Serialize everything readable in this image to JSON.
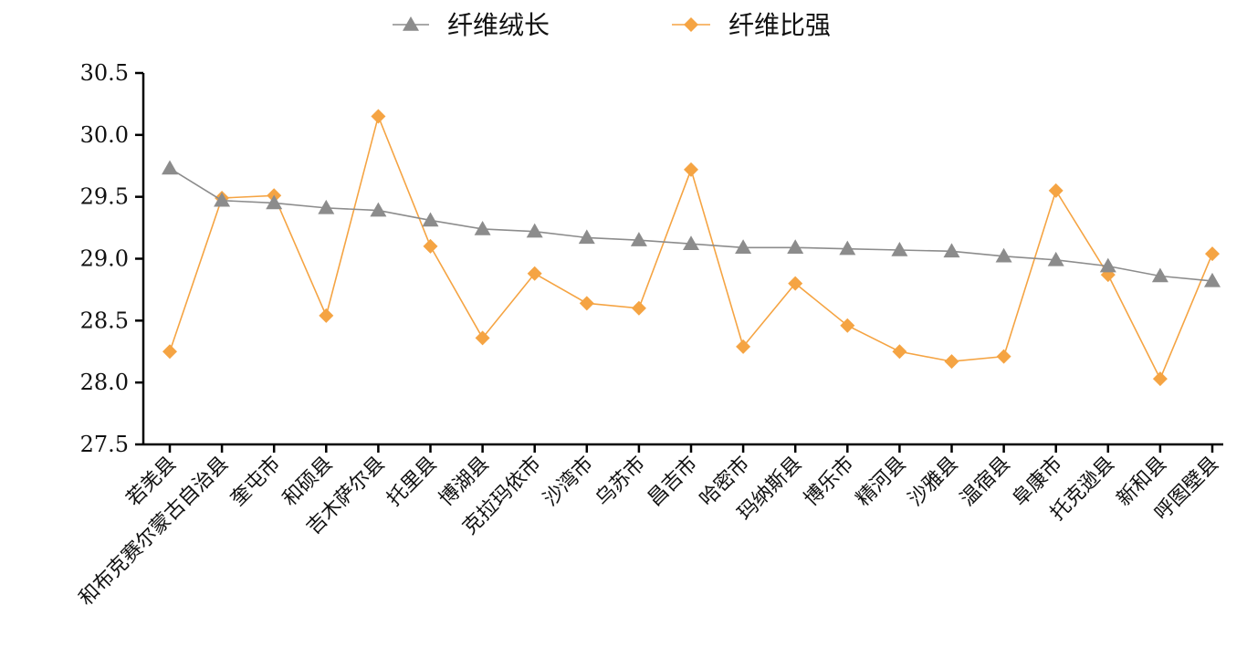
{
  "chart_data": {
    "type": "line",
    "title": "",
    "xlabel": "",
    "ylabel": "",
    "categories": [
      "若羌县",
      "和布克赛尔蒙古自治县",
      "奎屯市",
      "和硕县",
      "吉木萨尔县",
      "托里县",
      "博湖县",
      "克拉玛依市",
      "沙湾市",
      "乌苏市",
      "昌吉市",
      "哈密市",
      "玛纳斯县",
      "博乐市",
      "精河县",
      "沙雅县",
      "温宿县",
      "阜康市",
      "托克逊县",
      "新和县",
      "呼图壁县"
    ],
    "ylim": [
      27.5,
      30.5
    ],
    "yticks": [
      "27.5",
      "28.0",
      "28.5",
      "29.0",
      "29.5",
      "30.0",
      "30.5"
    ],
    "grid": false,
    "legend_position": "top-center",
    "series": [
      {
        "name": "纤维绒长",
        "marker": "triangle",
        "color": "#8c8c8c",
        "values": [
          29.73,
          29.47,
          29.45,
          29.41,
          29.39,
          29.31,
          29.24,
          29.22,
          29.17,
          29.15,
          29.12,
          29.09,
          29.09,
          29.08,
          29.07,
          29.06,
          29.02,
          28.99,
          28.94,
          28.86,
          28.82
        ]
      },
      {
        "name": "纤维比强",
        "marker": "diamond",
        "color": "#f5a443",
        "values": [
          28.25,
          29.49,
          29.51,
          28.54,
          30.15,
          29.1,
          28.36,
          28.88,
          28.64,
          28.6,
          29.72,
          28.29,
          28.8,
          28.46,
          28.25,
          28.17,
          28.21,
          29.55,
          28.87,
          28.03,
          29.04
        ]
      }
    ]
  }
}
